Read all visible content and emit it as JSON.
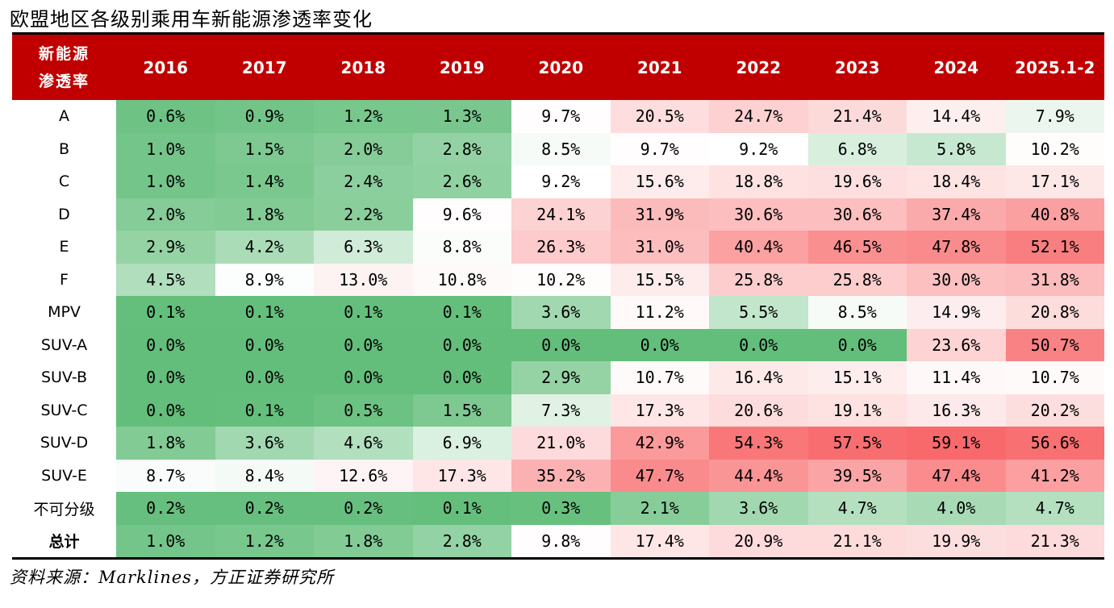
{
  "title": "欧盟地区各级别乘用车新能源渗透率变化",
  "source": "资料来源：Marklines，方正证券研究所",
  "corner_label": [
    "新能源",
    "渗透率"
  ],
  "colors": {
    "header_bg": "#c00000",
    "low": "#63be7b",
    "mid": "#ffffff",
    "high": "#f8696b"
  },
  "chart_data": {
    "type": "heatmap",
    "columns": [
      "2016",
      "2017",
      "2018",
      "2019",
      "2020",
      "2021",
      "2022",
      "2023",
      "2024",
      "2025.1-2"
    ],
    "rows": [
      {
        "label": "A",
        "values": [
          0.6,
          0.9,
          1.2,
          1.3,
          9.7,
          20.5,
          24.7,
          21.4,
          14.4,
          7.9
        ]
      },
      {
        "label": "B",
        "values": [
          1.0,
          1.5,
          2.0,
          2.8,
          8.5,
          9.7,
          9.2,
          6.8,
          5.8,
          10.2
        ]
      },
      {
        "label": "C",
        "values": [
          1.0,
          1.4,
          2.4,
          2.6,
          9.2,
          15.6,
          18.8,
          19.6,
          18.4,
          17.1
        ]
      },
      {
        "label": "D",
        "values": [
          2.0,
          1.8,
          2.2,
          9.6,
          24.1,
          31.9,
          30.6,
          30.6,
          37.4,
          40.8
        ]
      },
      {
        "label": "E",
        "values": [
          2.9,
          4.2,
          6.3,
          8.8,
          26.3,
          31.0,
          40.4,
          46.5,
          47.8,
          52.1
        ]
      },
      {
        "label": "F",
        "values": [
          4.5,
          8.9,
          13.0,
          10.8,
          10.2,
          15.5,
          25.8,
          25.8,
          30.0,
          31.8
        ]
      },
      {
        "label": "MPV",
        "values": [
          0.1,
          0.1,
          0.1,
          0.1,
          3.6,
          11.2,
          5.5,
          8.5,
          14.9,
          20.8
        ]
      },
      {
        "label": "SUV-A",
        "values": [
          0.0,
          0.0,
          0.0,
          0.0,
          0.0,
          0.0,
          0.0,
          0.0,
          23.6,
          50.7
        ]
      },
      {
        "label": "SUV-B",
        "values": [
          0.0,
          0.0,
          0.0,
          0.0,
          2.9,
          10.7,
          16.4,
          15.1,
          11.4,
          10.7
        ]
      },
      {
        "label": "SUV-C",
        "values": [
          0.0,
          0.1,
          0.5,
          1.5,
          7.3,
          17.3,
          20.6,
          19.1,
          16.3,
          20.2
        ]
      },
      {
        "label": "SUV-D",
        "values": [
          1.8,
          3.6,
          4.6,
          6.9,
          21.0,
          42.9,
          54.3,
          57.5,
          59.1,
          56.6
        ]
      },
      {
        "label": "SUV-E",
        "values": [
          8.7,
          8.4,
          12.6,
          17.3,
          35.2,
          47.7,
          44.4,
          39.5,
          47.4,
          41.2
        ]
      },
      {
        "label": "不可分级",
        "values": [
          0.2,
          0.2,
          0.2,
          0.1,
          0.3,
          2.1,
          3.6,
          4.7,
          4.0,
          4.7
        ]
      },
      {
        "label": "总计",
        "bold": true,
        "values": [
          1.0,
          1.2,
          1.8,
          2.8,
          9.8,
          17.4,
          20.9,
          21.1,
          19.9,
          21.3
        ]
      }
    ],
    "unit": "%"
  }
}
